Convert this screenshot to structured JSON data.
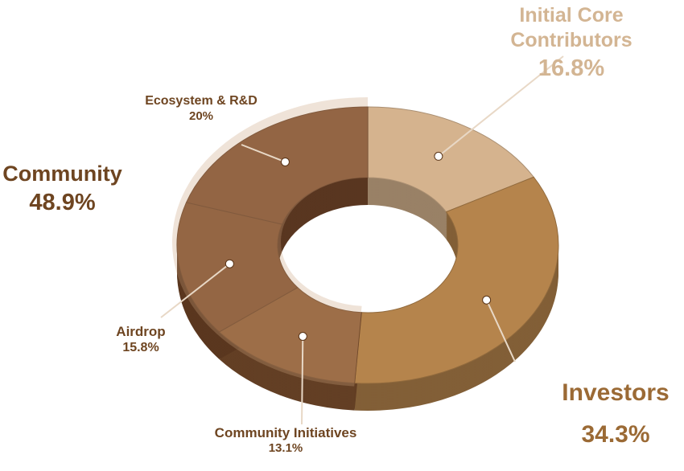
{
  "chart_data": {
    "type": "donut",
    "categories": [
      "Initial Core Contributors",
      "Investors",
      "Community Initiatives",
      "Airdrop",
      "Ecosystem & R&D"
    ],
    "values": [
      16.8,
      34.3,
      13.1,
      15.8,
      20
    ],
    "value_labels": [
      "16.8%",
      "34.3%",
      "13.1%",
      "15.8%",
      "20%"
    ],
    "colors": [
      "#d5b38e",
      "#b5844c",
      "#8a5832",
      "#7d4c2b",
      "#7b4b2c"
    ],
    "group": {
      "name": "Community",
      "value": 48.9,
      "value_label": "48.9%",
      "color": "#c9a27e"
    }
  }
}
